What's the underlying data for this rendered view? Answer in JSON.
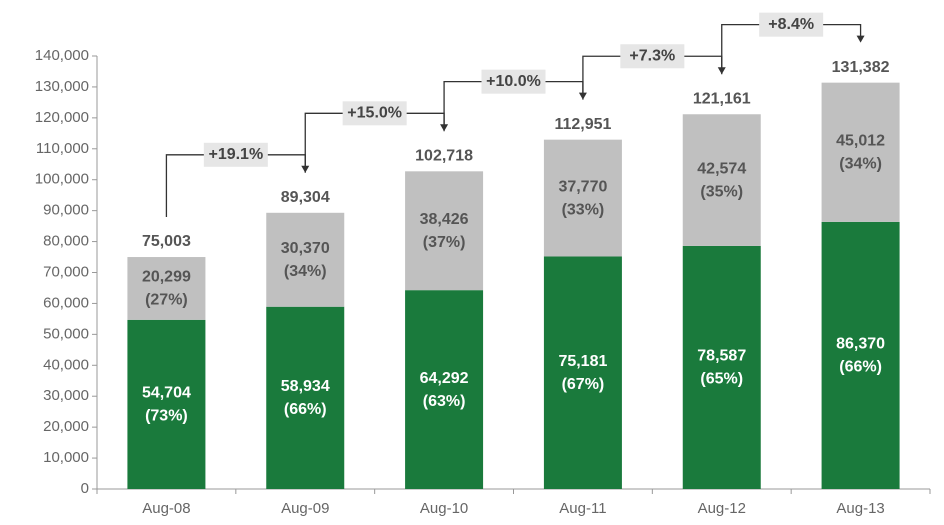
{
  "chart_data": {
    "type": "stacked_bar",
    "categories": [
      "Aug-08",
      "Aug-09",
      "Aug-10",
      "Aug-11",
      "Aug-12",
      "Aug-13"
    ],
    "series": [
      {
        "color": "#1a7a3c",
        "label_color": "#ffffff",
        "values": [
          54704,
          58934,
          64292,
          75181,
          78587,
          86370
        ],
        "value_labels": [
          "54,704",
          "58,934",
          "64,292",
          "75,181",
          "78,587",
          "86,370"
        ],
        "share_labels": [
          "(73%)",
          "(66%)",
          "(63%)",
          "(67%)",
          "(65%)",
          "(66%)"
        ]
      },
      {
        "color": "#c0c0c0",
        "label_color": "#555555",
        "values": [
          20299,
          30370,
          38426,
          37770,
          42574,
          45012
        ],
        "value_labels": [
          "20,299",
          "30,370",
          "38,426",
          "37,770",
          "42,574",
          "45,012"
        ],
        "share_labels": [
          "(27%)",
          "(34%)",
          "(37%)",
          "(33%)",
          "(35%)",
          "(34%)"
        ]
      }
    ],
    "totals": [
      75003,
      89304,
      102718,
      112951,
      121161,
      131382
    ],
    "total_labels": [
      "75,003",
      "89,304",
      "102,718",
      "112,951",
      "121,161",
      "131,382"
    ],
    "growth_labels": [
      "+19.1%",
      "+15.0%",
      "+10.0%",
      "+7.3%",
      "+8.4%"
    ],
    "ylim": [
      0,
      140000
    ],
    "yticks": [
      0,
      {
        "value": 10000,
        "label": "10,000"
      },
      {
        "value": 20000,
        "label": "20,000"
      },
      {
        "value": 30000,
        "label": "30,000"
      },
      {
        "value": 40000,
        "label": "40,000"
      },
      {
        "value": 50000,
        "label": "50,000"
      },
      {
        "value": 60000,
        "label": "60,000"
      },
      {
        "value": 70000,
        "label": "70,000"
      },
      {
        "value": 80000,
        "label": "80,000"
      },
      {
        "value": 90000,
        "label": "90,000"
      },
      {
        "value": 100000,
        "label": "100,000"
      },
      {
        "value": 110000,
        "label": "110,000"
      },
      {
        "value": 120000,
        "label": "120,000"
      },
      {
        "value": 130000,
        "label": "130,000"
      },
      {
        "value": 140000,
        "label": "140,000"
      }
    ]
  }
}
